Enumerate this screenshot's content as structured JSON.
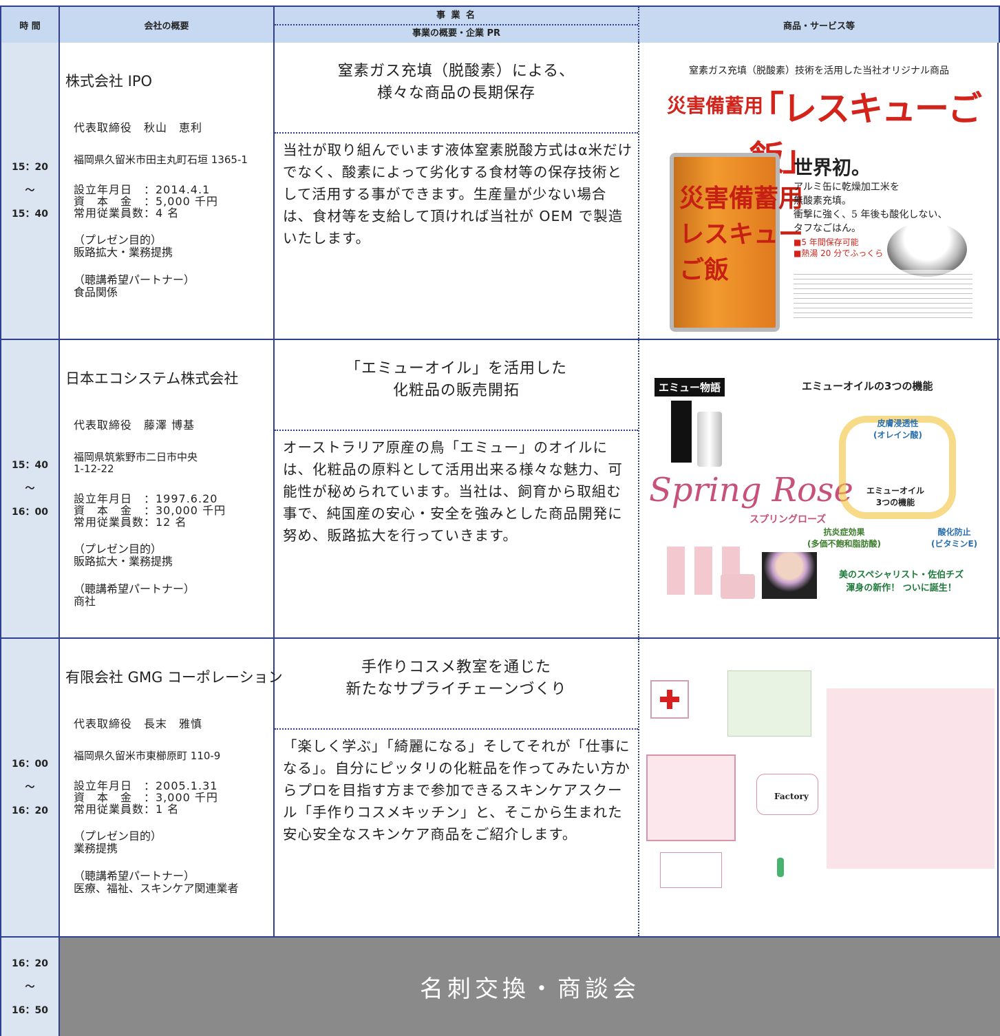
{
  "header": {
    "time": "時 間",
    "company": "会社の概要",
    "business_name": "事 業 名",
    "business_summary": "事業の概要・企業 PR",
    "products": "商品・サービス等"
  },
  "rows": [
    {
      "time": "15：20\n～\n15：40",
      "company": "株式会社 IPO",
      "representative": "代表取締役　秋山　恵利",
      "address": "福岡県久留米市田主丸町石垣 1365-1",
      "details": [
        "設立年月日　：2014.4.1",
        "資　本　金　：5,000 千円",
        "常用従業員数：4 名"
      ],
      "purpose_label": "（プレゼン目的）",
      "purpose": "販路拡大・業務提携",
      "partner_label": "（聴講希望パートナー）",
      "partner": "食品関係",
      "title": "窒素ガス充填（脱酸素）による、\n様々な商品の長期保存",
      "summary": "当社が取り組んでいます液体窒素脱酸方式はα米だけでなく、酸素によって劣化する食材等の保存技術として活用する事ができます。生産量が少ない場合は、食材等を支給して頂ければ当社が OEM で製造いたします。",
      "product_caption": "窒素ガス充填（脱酸素）技術を活用した当社オリジナル商品",
      "image_texts": [
        "災害備蓄用",
        "「レスキューご飯」",
        "世界初。",
        "アルミ缶に乾燥加工米を\n無酸素充填。\n衝撃に強く、5 年後も酸化しない、\nタフなごはん。",
        "■5 年間保存可能\n■熱湯 20 分でふっくら",
        "災害備蓄用\nレスキュー\nご飯"
      ]
    },
    {
      "time": "15：40\n～\n16：00",
      "company": "日本エコシステム株式会社",
      "representative": "代表取締役　藤澤 博基",
      "address": "福岡県筑紫野市二日市中央\n1-12-22",
      "details": [
        "設立年月日　：1997.6.20",
        "資　本　金　：30,000 千円",
        "常用従業員数：12 名"
      ],
      "purpose_label": "（プレゼン目的）",
      "purpose": "販路拡大・業務提携",
      "partner_label": "（聴講希望パートナー）",
      "partner": "商社",
      "title": "「エミューオイル」を活用した\n化粧品の販売開拓",
      "summary": "オーストラリア原産の鳥「エミュー」のオイルには、化粧品の原料として活用出来る様々な魅力、可能性が秘められています。当社は、飼育から取組む事で、純国産の安心・安全を強みとした商品開発に努め、販路拡大を行っていきます。",
      "image_texts": [
        "エミュー物語",
        "エミューオイルの3つの機能",
        "皮膚浸透性\n(オレイン酸)",
        "エミューオイル\n3つの機能",
        "抗炎症効果\n(多価不飽和脂肪酸)",
        "酸化防止\n(ビタミンE)",
        "Spring Rose",
        "スプリングローズ",
        "美のスペシャリスト・佐伯チズ\n渾身の新作！ ついに誕生！"
      ]
    },
    {
      "time": "16：00\n～\n16：20",
      "company": "有限会社 GMG コーポレーション",
      "representative": "代表取締役　長末　雅慎",
      "address": "福岡県久留米市東櫛原町 110-9",
      "details": [
        "設立年月日　：2005.1.31",
        "資　本　金　：3,000 千円",
        "常用従業員数：1 名"
      ],
      "purpose_label": "（プレゼン目的）",
      "purpose": "業務提携",
      "partner_label": "（聴講希望パートナー）",
      "partner": "医療、福祉、スキンケア関連業者",
      "title": "手作りコスメ教室を通じた\n新たなサプライチェーンづくり",
      "summary": "「楽しく学ぶ」「綺麗になる」そしてそれが「仕事になる」。自分にピッタリの化粧品を作ってみたい方からプロを目指す方まで参加できるスキンケアスクール「手作りコスメキッチン」と、そこから生まれた安心安全なスキンケア商品をご紹介します。",
      "image_texts": [
        "Factory"
      ]
    }
  ],
  "break": {
    "time": "16：20\n～\n16：50",
    "label": "名刺交換・商談会"
  }
}
